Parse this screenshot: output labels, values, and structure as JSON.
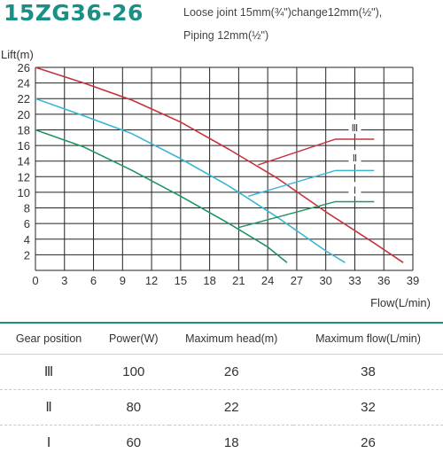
{
  "header": {
    "model": "15ZG36-26",
    "spec_line_1": "Loose joint 15mm(¾\")change12mm(½\"),",
    "spec_line_2": "Piping 12mm(½\")"
  },
  "chart_data": {
    "type": "line",
    "ylabel": "Lift(m)",
    "xlabel": "Flow(L/min)",
    "xlim": [
      0,
      39
    ],
    "ylim": [
      0,
      26
    ],
    "xticks": [
      0,
      3,
      6,
      9,
      12,
      15,
      18,
      21,
      24,
      27,
      30,
      33,
      36,
      39
    ],
    "yticks": [
      2,
      4,
      6,
      8,
      10,
      12,
      14,
      16,
      18,
      20,
      22,
      24,
      26
    ],
    "grid": true,
    "series": [
      {
        "name": "Ⅲ",
        "color": "#c8323c",
        "x": [
          0,
          5,
          10,
          15,
          20,
          25,
          30,
          35,
          38
        ],
        "y": [
          26,
          24.0,
          21.8,
          19.0,
          15.5,
          11.8,
          7.5,
          3.5,
          1.0
        ]
      },
      {
        "name": "Ⅱ",
        "color": "#3ab6d6",
        "x": [
          0,
          5,
          10,
          15,
          20,
          25,
          30,
          32
        ],
        "y": [
          22,
          19.8,
          17.5,
          14.3,
          10.8,
          6.8,
          2.5,
          1.0
        ]
      },
      {
        "name": "Ⅰ",
        "color": "#1e9660",
        "x": [
          0,
          5,
          10,
          15,
          20,
          24,
          26
        ],
        "y": [
          18,
          15.8,
          12.8,
          9.5,
          6.0,
          3.0,
          1.0
        ]
      }
    ],
    "annotations": [
      {
        "label": "Ⅲ",
        "x": [
          23,
          31,
          35
        ],
        "y": [
          13.5,
          16.8,
          16.8
        ],
        "label_x": 33,
        "label_y": 18.3
      },
      {
        "label": "Ⅱ",
        "x": [
          22,
          31,
          35
        ],
        "y": [
          9.5,
          12.8,
          12.8
        ],
        "label_x": 33,
        "label_y": 14.4
      },
      {
        "label": "Ⅰ",
        "x": [
          21,
          31,
          35
        ],
        "y": [
          5.5,
          8.8,
          8.8
        ],
        "label_x": 33,
        "label_y": 10.3
      }
    ]
  },
  "table": {
    "headers": [
      "Gear position",
      "Power(W)",
      "Maximum head(m)",
      "Maximum flow(L/min)"
    ],
    "rows": [
      [
        "Ⅲ",
        "100",
        "26",
        "38"
      ],
      [
        "Ⅱ",
        "80",
        "22",
        "32"
      ],
      [
        "Ⅰ",
        "60",
        "18",
        "26"
      ]
    ]
  }
}
